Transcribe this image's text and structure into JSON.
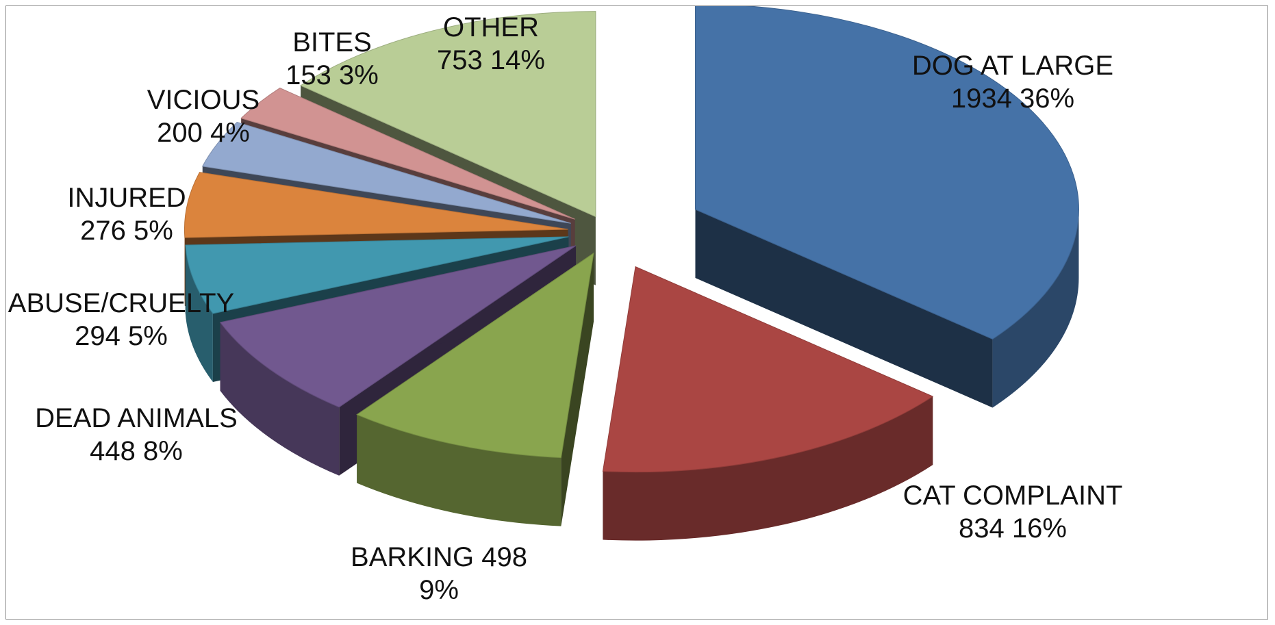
{
  "chart_data": {
    "type": "pie",
    "style": "3d-exploded",
    "title": "",
    "slices": [
      {
        "name": "DOG AT LARGE",
        "value": 1934,
        "percent": "36%",
        "color": "#4572a7",
        "label_lines": [
          "DOG AT LARGE",
          "1934   36%"
        ]
      },
      {
        "name": "CAT COMPLAINT",
        "value": 834,
        "percent": "16%",
        "color": "#aa4643",
        "label_lines": [
          "CAT COMPLAINT",
          "834   16%"
        ]
      },
      {
        "name": "BARKING",
        "value": 498,
        "percent": "9%",
        "color": "#89a54e",
        "label_lines": [
          "BARKING 498",
          "9%"
        ]
      },
      {
        "name": "DEAD ANIMALS",
        "value": 448,
        "percent": "8%",
        "color": "#71588f",
        "label_lines": [
          "DEAD ANIMALS",
          "448  8%"
        ]
      },
      {
        "name": "ABUSE/CRUELTY",
        "value": 294,
        "percent": "5%",
        "color": "#4198af",
        "label_lines": [
          "ABUSE/CRUELTY",
          "294  5%"
        ]
      },
      {
        "name": "INJURED",
        "value": 276,
        "percent": "5%",
        "color": "#db843d",
        "label_lines": [
          "INJURED",
          "276   5%"
        ]
      },
      {
        "name": "VICIOUS",
        "value": 200,
        "percent": "4%",
        "color": "#93a9cf",
        "label_lines": [
          "VICIOUS",
          "200   4%"
        ]
      },
      {
        "name": "BITES",
        "value": 153,
        "percent": "3%",
        "color": "#d19392",
        "label_lines": [
          "BITES",
          "153  3%"
        ]
      },
      {
        "name": "OTHER",
        "value": 753,
        "percent": "14%",
        "color": "#b9cd96",
        "label_lines": [
          "OTHER",
          "753   14%"
        ]
      }
    ]
  }
}
